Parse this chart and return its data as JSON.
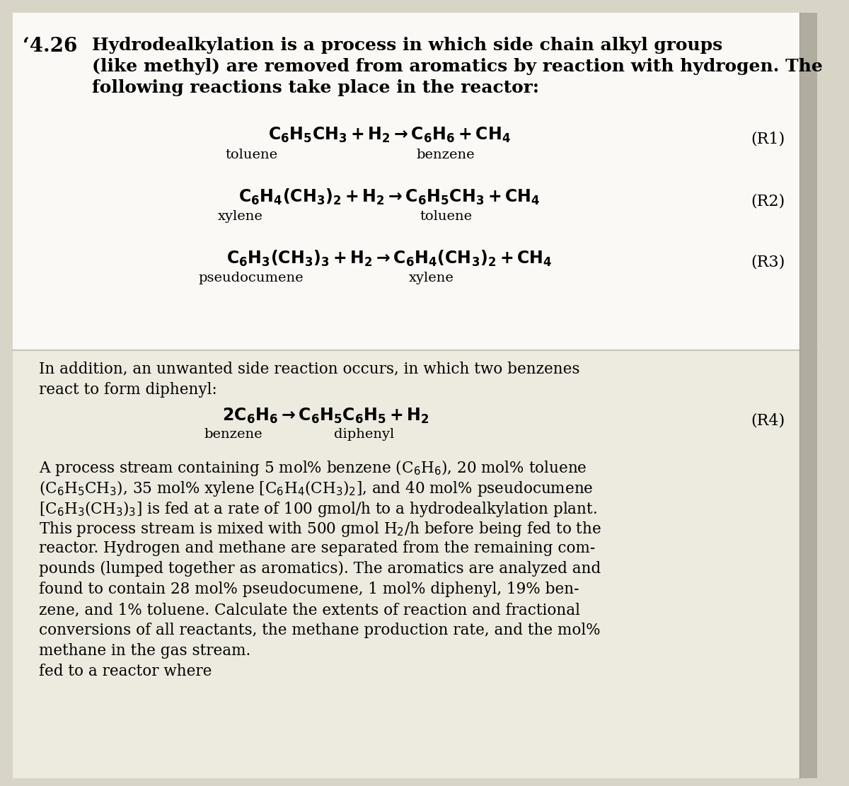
{
  "background_color": "#d8d4c8",
  "page_bg_top": "#faf9f5",
  "page_bg_bottom": "#edeae0",
  "fig_width": 12.0,
  "fig_height": 11.11,
  "spine_color": "#b0aca0",
  "separator_color": "#c8c4b8",
  "title_number": "‘4.26",
  "title_line1": "Hydrodealkylation is a process in which side chain alkyl groups",
  "title_line2": "(like methyl) are removed from aromatics by reaction with hydrogen. The",
  "title_line3": "following reactions take place in the reactor:",
  "r1_eq": "$\\mathbf{C_6H_5CH_3 + H_2 \\rightarrow C_6H_6 + CH_4}$",
  "r1_lbl_left": "toluene",
  "r1_lbl_right": "benzene",
  "r1_tag": "(R1)",
  "r2_eq": "$\\mathbf{C_6H_4(CH_3)_2 + H_2 \\rightarrow C_6H_5CH_3 + CH_4}$",
  "r2_lbl_left": "xylene",
  "r2_lbl_right": "toluene",
  "r2_tag": "(R2)",
  "r3_eq": "$\\mathbf{C_6H_3(CH_3)_3 + H_2 \\rightarrow C_6H_4(CH_3)_2 + CH_4}$",
  "r3_lbl_left": "pseudocumene",
  "r3_lbl_right": "xylene",
  "r3_tag": "(R3)",
  "side_line1": "In addition, an unwanted side reaction occurs, in which two benzenes",
  "side_line2": "react to form diphenyl:",
  "r4_eq": "$\\mathbf{2C_6H_6 \\rightarrow C_6H_5C_6H_5 + H_2}$",
  "r4_lbl_left": "benzene",
  "r4_lbl_right": "diphenyl",
  "r4_tag": "(R4)",
  "para_lines": [
    "A process stream containing 5 mol% benzene (C$_6$H$_6$), 20 mol% toluene",
    "(C$_6$H$_5$CH$_3$), 35 mol% xylene [C$_6$H$_4$(CH$_3$)$_2$], and 40 mol% pseudocumene",
    "[C$_6$H$_3$(CH$_3$)$_3$] is fed at a rate of 100 gmol/h to a hydrodealkylation plant.",
    "This process stream is mixed with 500 gmol H$_2$/h before being fed to the",
    "reactor. Hydrogen and methane are separated from the remaining com-",
    "pounds (lumped together as aromatics). The aromatics are analyzed and",
    "found to contain 28 mol% pseudocumene, 1 mol% diphenyl, 19% ben-",
    "zene, and 1% toluene. Calculate the extents of reaction and fractional",
    "conversions of all reactants, the methane production rate, and the mol%",
    "methane in the gas stream."
  ],
  "bottom_line": "fed to a reactor where"
}
